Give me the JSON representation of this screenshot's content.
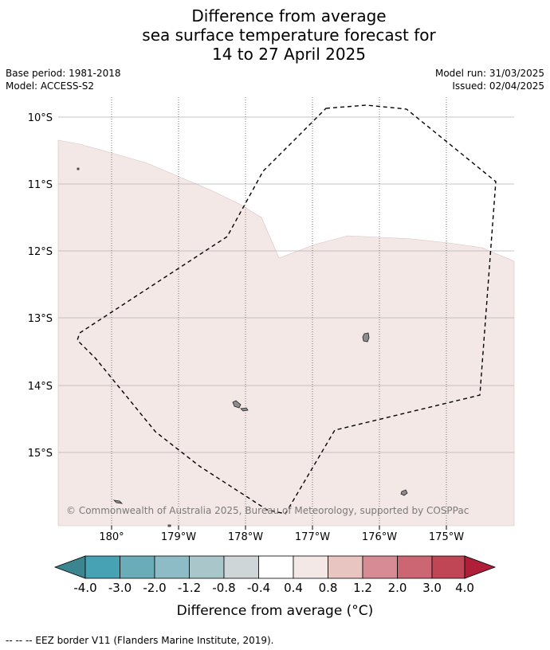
{
  "title": {
    "line1": "Difference from average",
    "line2": "sea surface temperature forecast for",
    "line3": "14 to 27 April 2025"
  },
  "info": {
    "base_period": "Base period: 1981-2018",
    "model": "Model: ACCESS-S2",
    "model_run": "Model run: 31/03/2025",
    "issued": "Issued: 02/04/2025"
  },
  "map": {
    "lat_labels": [
      "10°S",
      "11°S",
      "12°S",
      "13°S",
      "14°S",
      "15°S"
    ],
    "lon_labels": [
      "180°",
      "179°W",
      "178°W",
      "177°W",
      "176°W",
      "175°W"
    ],
    "copyright": "© Commonwealth of Australia 2025, Bureau of Meteorology, supported by COSPPac",
    "anomaly_fill_color": "#f4e8e6",
    "land_color": "#8c8c8c"
  },
  "colorbar": {
    "label": "Difference from average (°C)",
    "ticks": [
      "-4.0",
      "-3.0",
      "-2.0",
      "-1.2",
      "-0.8",
      "-0.4",
      "0.4",
      "0.8",
      "1.2",
      "2.0",
      "3.0",
      "4.0"
    ],
    "colors": [
      "#3a8590",
      "#47a2b3",
      "#6aadb9",
      "#8ebcc6",
      "#a9c6cb",
      "#cfd6d7",
      "#ffffff",
      "#f4e8e6",
      "#e8c5c1",
      "#d78c95",
      "#cb6672",
      "#c14655",
      "#b01f3a"
    ]
  },
  "footer": {
    "eez_text": "--  --  -- EEZ border V11 (Flanders Marine Institute, 2019)."
  }
}
